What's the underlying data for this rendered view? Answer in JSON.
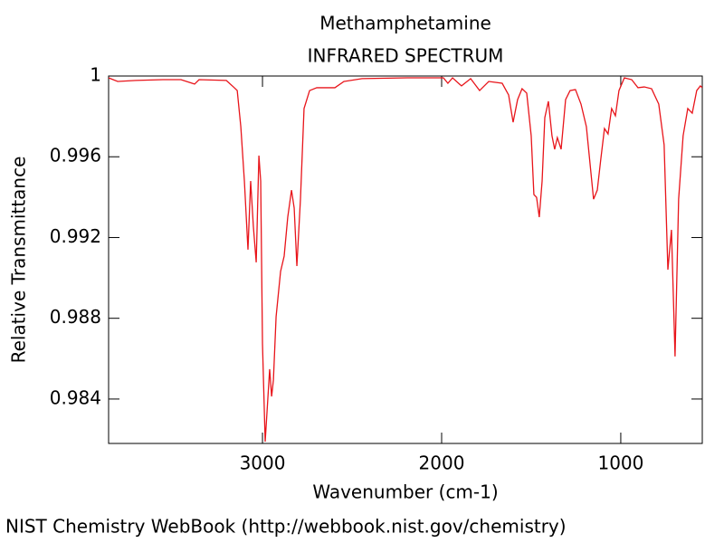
{
  "chart_data": {
    "type": "line",
    "title": "Methamphetamine",
    "subtitle": "INFRARED SPECTRUM",
    "x_label": "Wavenumber (cm-1)",
    "y_label": "Relative Transmittance",
    "source": "NIST Chemistry WebBook (http://webbook.nist.gov/chemistry)",
    "xlim": [
      3859,
      545
    ],
    "ylim": [
      0.9818,
      1
    ],
    "xticks": [
      3000,
      2000,
      1000
    ],
    "yticks": [
      1,
      0.996,
      0.992,
      0.988,
      0.984
    ],
    "grid": false,
    "series": [
      {
        "name": "Methamphetamine",
        "color": "#e8141a",
        "x": [
          3859,
          3808,
          3707,
          3556,
          3455,
          3379,
          3354,
          3202,
          3162,
          3141,
          3121,
          3101,
          3081,
          3066,
          3051,
          3035,
          3020,
          3010,
          3000,
          2985,
          2970,
          2960,
          2949,
          2939,
          2924,
          2899,
          2879,
          2859,
          2838,
          2823,
          2808,
          2788,
          2768,
          2737,
          2697,
          2596,
          2545,
          2444,
          2192,
          1990,
          1965,
          1939,
          1889,
          1838,
          1788,
          1737,
          1662,
          1626,
          1601,
          1576,
          1551,
          1525,
          1500,
          1485,
          1470,
          1455,
          1439,
          1424,
          1404,
          1384,
          1369,
          1354,
          1333,
          1308,
          1283,
          1253,
          1222,
          1192,
          1172,
          1152,
          1131,
          1111,
          1091,
          1071,
          1051,
          1030,
          1010,
          980,
          939,
          904,
          869,
          828,
          788,
          758,
          737,
          717,
          697,
          677,
          652,
          626,
          601,
          576,
          556,
          545
        ],
        "values": [
          0.99991,
          0.99973,
          0.99978,
          0.99982,
          0.99982,
          0.9996,
          0.99982,
          0.99978,
          0.99946,
          0.99928,
          0.99749,
          0.9948,
          0.9914,
          0.9948,
          0.99256,
          0.99077,
          0.99606,
          0.9948,
          0.98673,
          0.98189,
          0.98404,
          0.98548,
          0.98413,
          0.98494,
          0.98808,
          0.99032,
          0.99108,
          0.99301,
          0.99435,
          0.99346,
          0.99059,
          0.9939,
          0.99839,
          0.99928,
          0.99942,
          0.99942,
          0.99973,
          0.99987,
          0.99991,
          0.99991,
          0.99964,
          0.99991,
          0.99951,
          0.99987,
          0.99928,
          0.99973,
          0.99964,
          0.99906,
          0.99771,
          0.99883,
          0.99937,
          0.99915,
          0.99704,
          0.99413,
          0.99399,
          0.99301,
          0.9948,
          0.99794,
          0.99875,
          0.99704,
          0.99637,
          0.99695,
          0.99637,
          0.99883,
          0.99928,
          0.99933,
          0.99861,
          0.99749,
          0.9957,
          0.9939,
          0.99435,
          0.99592,
          0.9974,
          0.99713,
          0.99839,
          0.99803,
          0.99928,
          0.99991,
          0.99982,
          0.99942,
          0.99946,
          0.99937,
          0.99861,
          0.99659,
          0.99041,
          0.99238,
          0.98611,
          0.9939,
          0.99704,
          0.99839,
          0.99816,
          0.99928,
          0.99951,
          0.99942
        ]
      }
    ]
  }
}
